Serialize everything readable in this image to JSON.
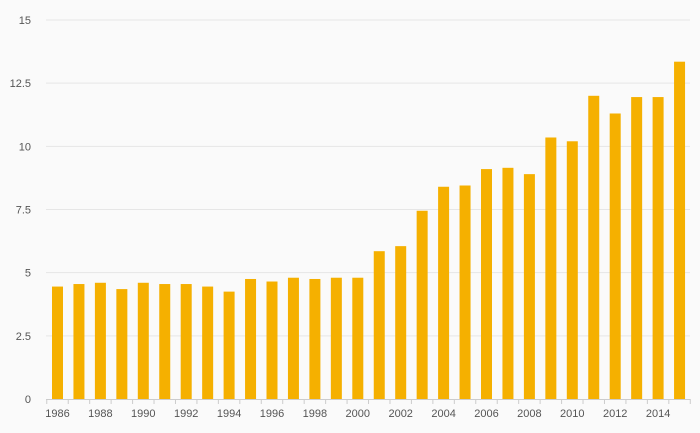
{
  "chart_data": {
    "type": "bar",
    "categories": [
      "1986",
      "1987",
      "1988",
      "1989",
      "1990",
      "1991",
      "1992",
      "1993",
      "1994",
      "1995",
      "1996",
      "1997",
      "1998",
      "1999",
      "2000",
      "2001",
      "2002",
      "2003",
      "2004",
      "2005",
      "2006",
      "2007",
      "2008",
      "2009",
      "2010",
      "2011",
      "2012",
      "2013",
      "2014",
      "2015"
    ],
    "x_tick_labels": [
      "1986",
      "1988",
      "1990",
      "1992",
      "1994",
      "1996",
      "1998",
      "2000",
      "2002",
      "2004",
      "2006",
      "2008",
      "2010",
      "2012",
      "2014"
    ],
    "values": [
      4.45,
      4.55,
      4.6,
      4.35,
      4.6,
      4.55,
      4.55,
      4.45,
      4.25,
      4.75,
      4.65,
      4.8,
      4.75,
      4.8,
      4.8,
      5.85,
      6.05,
      7.45,
      8.4,
      8.45,
      9.1,
      9.15,
      8.9,
      10.35,
      10.2,
      12.0,
      11.3,
      11.95,
      11.95,
      13.35
    ],
    "ylim": [
      0,
      15
    ],
    "y_ticks": [
      "0",
      "2.5",
      "5",
      "7.5",
      "10",
      "12.5",
      "15"
    ],
    "title": "",
    "xlabel": "",
    "ylabel": "",
    "grid": true,
    "legend": "none",
    "bar_color": "#f5b000",
    "grid_color": "#e6e6e6",
    "axis_color": "#cccccc",
    "label_color": "#555555"
  }
}
